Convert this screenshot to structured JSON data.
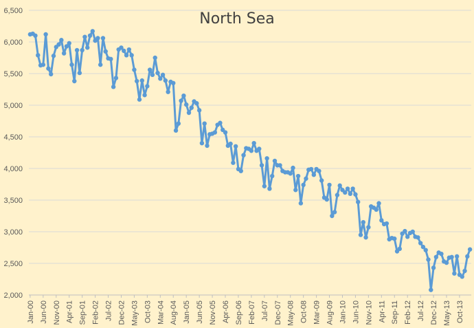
{
  "chart_data": {
    "type": "line",
    "title": "North Sea",
    "xlabel": "",
    "ylabel": "",
    "ylim": [
      2000,
      6500
    ],
    "y_ticks": [
      "2,000",
      "2,500",
      "3,000",
      "3,500",
      "4,000",
      "4,500",
      "5,000",
      "5,500",
      "6,000",
      "6,500"
    ],
    "x_tick_labels": [
      "Jan-00",
      "Jun-00",
      "Nov-00",
      "Apr-01",
      "Sep-01",
      "Feb-02",
      "Jul-02",
      "Dec-02",
      "May-03",
      "Oct-03",
      "Mar-04",
      "Aug-04",
      "Jan-05",
      "Jun-05",
      "Nov-05",
      "Apr-06",
      "Sep-06",
      "Feb-07",
      "Jul-07",
      "Dec-07",
      "May-08",
      "Oct-08",
      "Mar-09",
      "Aug-09",
      "Jan-10",
      "Jun-10",
      "Nov-10",
      "Apr-11",
      "Sep-11",
      "Feb-12",
      "Jul-12",
      "Dec-12",
      "May-13",
      "Oct-13"
    ],
    "x_start": "Jan-00",
    "grid": true,
    "line_color": "#5b9bd5",
    "background_color": "#fff2cc",
    "series": [
      {
        "values": [
          6120,
          6130,
          6100,
          5790,
          5630,
          5640,
          6120,
          5580,
          5490,
          5780,
          5920,
          5960,
          6030,
          5820,
          5930,
          5980,
          5640,
          5380,
          5870,
          5510,
          5870,
          6080,
          5910,
          6100,
          6170,
          6020,
          6060,
          5640,
          6060,
          5850,
          5740,
          5730,
          5290,
          5430,
          5880,
          5910,
          5860,
          5790,
          5880,
          5790,
          5560,
          5380,
          5090,
          5390,
          5160,
          5300,
          5560,
          5480,
          5750,
          5510,
          5420,
          5480,
          5390,
          5210,
          5370,
          5350,
          4600,
          4710,
          5070,
          5150,
          5010,
          4880,
          4960,
          5060,
          5030,
          4920,
          4400,
          4710,
          4360,
          4540,
          4550,
          4570,
          4690,
          4720,
          4610,
          4570,
          4360,
          4390,
          4090,
          4350,
          3990,
          3960,
          4210,
          4320,
          4310,
          4280,
          4400,
          4280,
          4310,
          4050,
          3720,
          4160,
          3680,
          3880,
          4120,
          4050,
          4050,
          3960,
          3940,
          3940,
          3920,
          4010,
          3660,
          3880,
          3450,
          3740,
          3840,
          3980,
          3990,
          3900,
          3990,
          3960,
          3810,
          3540,
          3510,
          3740,
          3250,
          3310,
          3580,
          3730,
          3660,
          3620,
          3680,
          3600,
          3680,
          3590,
          3470,
          2950,
          3150,
          2910,
          3070,
          3400,
          3380,
          3350,
          3450,
          3180,
          3120,
          3130,
          2880,
          2900,
          2890,
          2690,
          2730,
          2970,
          3010,
          2920,
          2980,
          3000,
          2920,
          2910,
          2820,
          2760,
          2710,
          2560,
          2080,
          2430,
          2600,
          2670,
          2650,
          2530,
          2510,
          2590,
          2600,
          2340,
          2610,
          2320,
          2290,
          2380,
          2610,
          2720
        ]
      }
    ]
  }
}
